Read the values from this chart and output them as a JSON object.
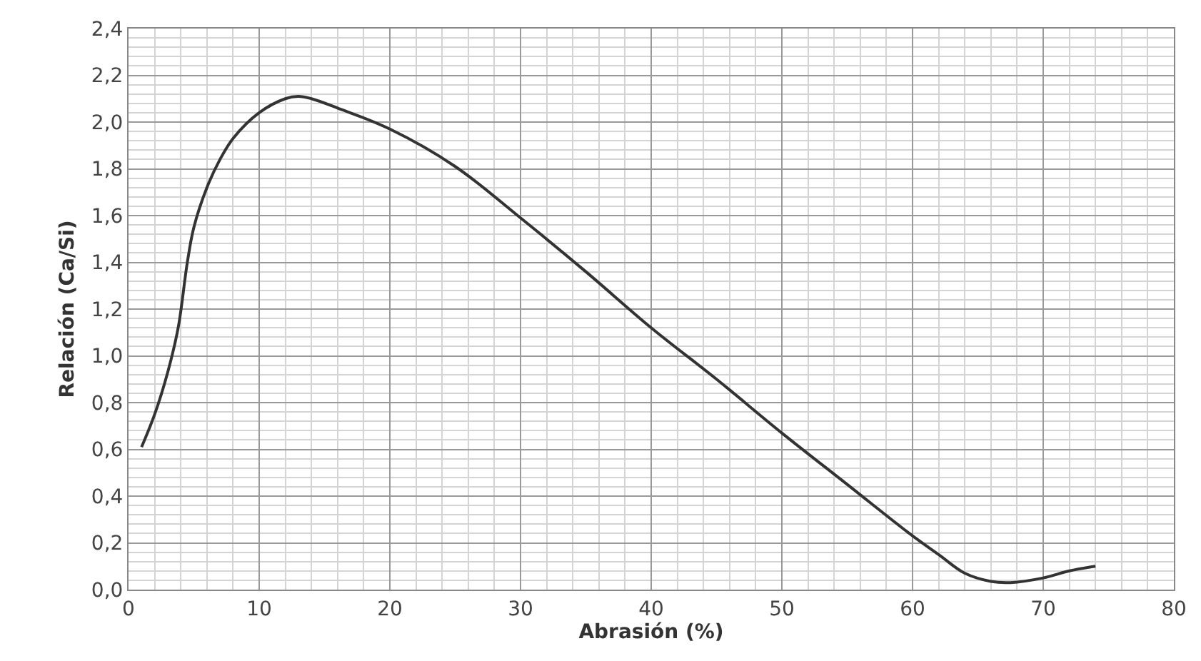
{
  "chart_data": {
    "type": "line",
    "xlabel": "Abrasión (%)",
    "ylabel": "Relación (Ca/Si)",
    "xlim": [
      0,
      80
    ],
    "xticks": [
      0,
      10,
      20,
      30,
      40,
      50,
      60,
      70,
      80
    ],
    "ylim": [
      0,
      2.4
    ],
    "yticks": [
      {
        "value": 0,
        "label": "0,0"
      },
      {
        "value": 0.2,
        "label": "0,2"
      },
      {
        "value": 0.4,
        "label": "0,4"
      },
      {
        "value": 0.6,
        "label": "0,6"
      },
      {
        "value": 0.8,
        "label": "0,8"
      },
      {
        "value": 1.0,
        "label": "1,0"
      },
      {
        "value": 1.2,
        "label": "1,2"
      },
      {
        "value": 1.4,
        "label": "1,4"
      },
      {
        "value": 1.6,
        "label": "1,6"
      },
      {
        "value": 1.8,
        "label": "1,8"
      },
      {
        "value": 2.0,
        "label": "2,0"
      },
      {
        "value": 2.2,
        "label": "2,2"
      },
      {
        "value": 2.4,
        "label": "2,4"
      }
    ],
    "grid": true,
    "marker": "none",
    "line_style": "solid",
    "series": [
      {
        "color": "#333333",
        "x": [
          1,
          2,
          3,
          3.8,
          4.5,
          5,
          6,
          7,
          8,
          10,
          12,
          13,
          14,
          16,
          20,
          25,
          30,
          35,
          40,
          45,
          50,
          55,
          60,
          62,
          64,
          66,
          67.5,
          70,
          72,
          74
        ],
        "values": [
          0.61,
          0.75,
          0.93,
          1.12,
          1.4,
          1.55,
          1.72,
          1.84,
          1.93,
          2.04,
          2.1,
          2.11,
          2.1,
          2.06,
          1.97,
          1.81,
          1.59,
          1.36,
          1.12,
          0.9,
          0.67,
          0.45,
          0.23,
          0.15,
          0.07,
          0.035,
          0.03,
          0.05,
          0.08,
          0.1
        ]
      }
    ]
  }
}
